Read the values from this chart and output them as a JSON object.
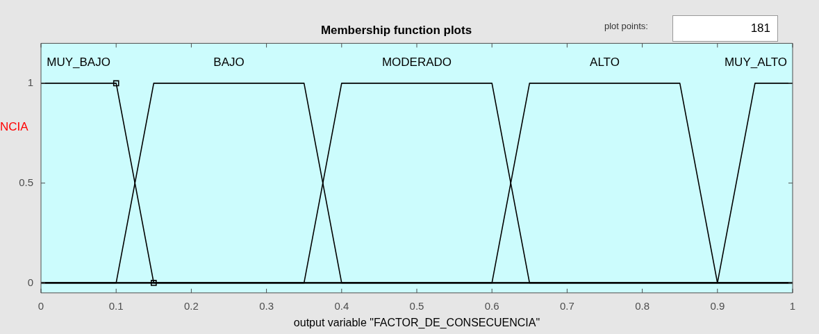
{
  "chart_data": {
    "type": "line",
    "title": "Membership function plots",
    "xlabel": "output variable \"FACTOR_DE_CONSECUENCIA\"",
    "ylabel": "NCIA",
    "xlim": [
      0,
      1
    ],
    "ylim": [
      -0.05,
      1.2
    ],
    "xticks": [
      0,
      0.1,
      0.2,
      0.3,
      0.4,
      0.5,
      0.6,
      0.7,
      0.8,
      0.9,
      1
    ],
    "yticks": [
      0,
      0.5,
      1
    ],
    "series": [
      {
        "name": "MUY_BAJO",
        "color": "#000000",
        "x": [
          0,
          0.1,
          0.15,
          1
        ],
        "values": [
          1,
          1,
          0,
          0
        ]
      },
      {
        "name": "BAJO",
        "color": "#000000",
        "x": [
          0,
          0.1,
          0.15,
          0.35,
          0.4,
          1
        ],
        "values": [
          0,
          0,
          1,
          1,
          0,
          0
        ]
      },
      {
        "name": "MODERADO",
        "color": "#000000",
        "x": [
          0,
          0.35,
          0.4,
          0.6,
          0.65,
          1
        ],
        "values": [
          0,
          0,
          1,
          1,
          0,
          0
        ]
      },
      {
        "name": "ALTO",
        "color": "#000000",
        "x": [
          0,
          0.6,
          0.65,
          0.85,
          0.9,
          1
        ],
        "values": [
          0,
          0,
          1,
          1,
          0,
          0
        ]
      },
      {
        "name": "MUY_ALTO",
        "color": "#000000",
        "x": [
          0,
          0.9,
          0.95,
          1
        ],
        "values": [
          0,
          0,
          1,
          1
        ]
      },
      {
        "type": "scatter",
        "color": "#000000",
        "marker": "square",
        "x": [
          0.1,
          0.15
        ],
        "values": [
          1,
          0
        ]
      }
    ],
    "annotations": [
      "plot points:",
      "181"
    ]
  }
}
